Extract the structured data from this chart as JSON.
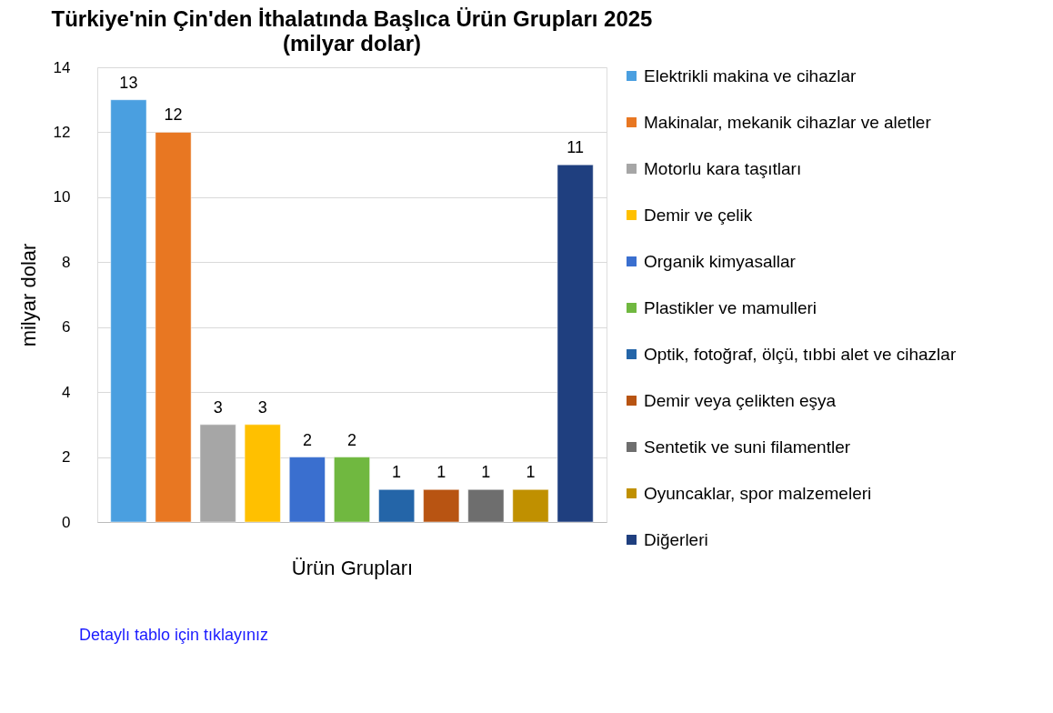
{
  "chart_data": {
    "type": "bar",
    "title": "Türkiye'nin Çin'den İthalatında Başlıca Ürün Grupları 2025",
    "subtitle": "(milyar dolar)",
    "xlabel": "Ürün Grupları",
    "ylabel": "milyar dolar",
    "categories": [
      null,
      null,
      null,
      null,
      null,
      null,
      null,
      null,
      null,
      null,
      null
    ],
    "series": [
      {
        "name": "Elektrikli makina ve cihazlar",
        "color": "#4a9fe0",
        "values": [
          13,
          null,
          null,
          null,
          null,
          null,
          null,
          null,
          null,
          null,
          null
        ]
      },
      {
        "name": "Makinalar, mekanik cihazlar ve aletler",
        "color": "#e87722",
        "values": [
          null,
          12,
          null,
          null,
          null,
          null,
          null,
          null,
          null,
          null,
          null
        ]
      },
      {
        "name": "Motorlu kara taşıtları",
        "color": "#a6a6a6",
        "values": [
          null,
          null,
          3,
          null,
          null,
          null,
          null,
          null,
          null,
          null,
          null
        ]
      },
      {
        "name": "Demir ve çelik",
        "color": "#ffc000",
        "values": [
          null,
          null,
          null,
          3,
          null,
          null,
          null,
          null,
          null,
          null,
          null
        ]
      },
      {
        "name": "Organik kimyasallar",
        "color": "#3a6fcf",
        "values": [
          null,
          null,
          null,
          null,
          2,
          null,
          null,
          null,
          null,
          null,
          null
        ]
      },
      {
        "name": "Plastikler ve mamulleri",
        "color": "#70b840",
        "values": [
          null,
          null,
          null,
          null,
          null,
          2,
          null,
          null,
          null,
          null,
          null
        ]
      },
      {
        "name": "Optik, fotoğraf, ölçü, tıbbi alet ve cihazlar",
        "color": "#2465a8",
        "values": [
          null,
          null,
          null,
          null,
          null,
          null,
          1,
          null,
          null,
          null,
          null
        ]
      },
      {
        "name": "Demir veya çelikten eşya",
        "color": "#b85412",
        "values": [
          null,
          null,
          null,
          null,
          null,
          null,
          null,
          1,
          null,
          null,
          null
        ]
      },
      {
        "name": "Sentetik ve suni filamentler",
        "color": "#6e6e6e",
        "values": [
          null,
          null,
          null,
          null,
          null,
          null,
          null,
          null,
          1,
          null,
          null
        ]
      },
      {
        "name": "Oyuncaklar, spor malzemeleri",
        "color": "#c09000",
        "values": [
          null,
          null,
          null,
          null,
          null,
          null,
          null,
          null,
          null,
          1,
          null
        ]
      },
      {
        "name": "Diğerleri",
        "color": "#1f3f7f",
        "values": [
          null,
          null,
          null,
          null,
          null,
          null,
          null,
          null,
          null,
          null,
          11
        ]
      }
    ],
    "ylim": [
      0,
      14
    ],
    "yticks": [
      0,
      2,
      4,
      6,
      8,
      10,
      12,
      14
    ],
    "grid": "y",
    "legend": "right",
    "tick_labels": "y",
    "data_labels": true,
    "annotations": [
      "Detaylı tablo için tıklayınız"
    ]
  }
}
